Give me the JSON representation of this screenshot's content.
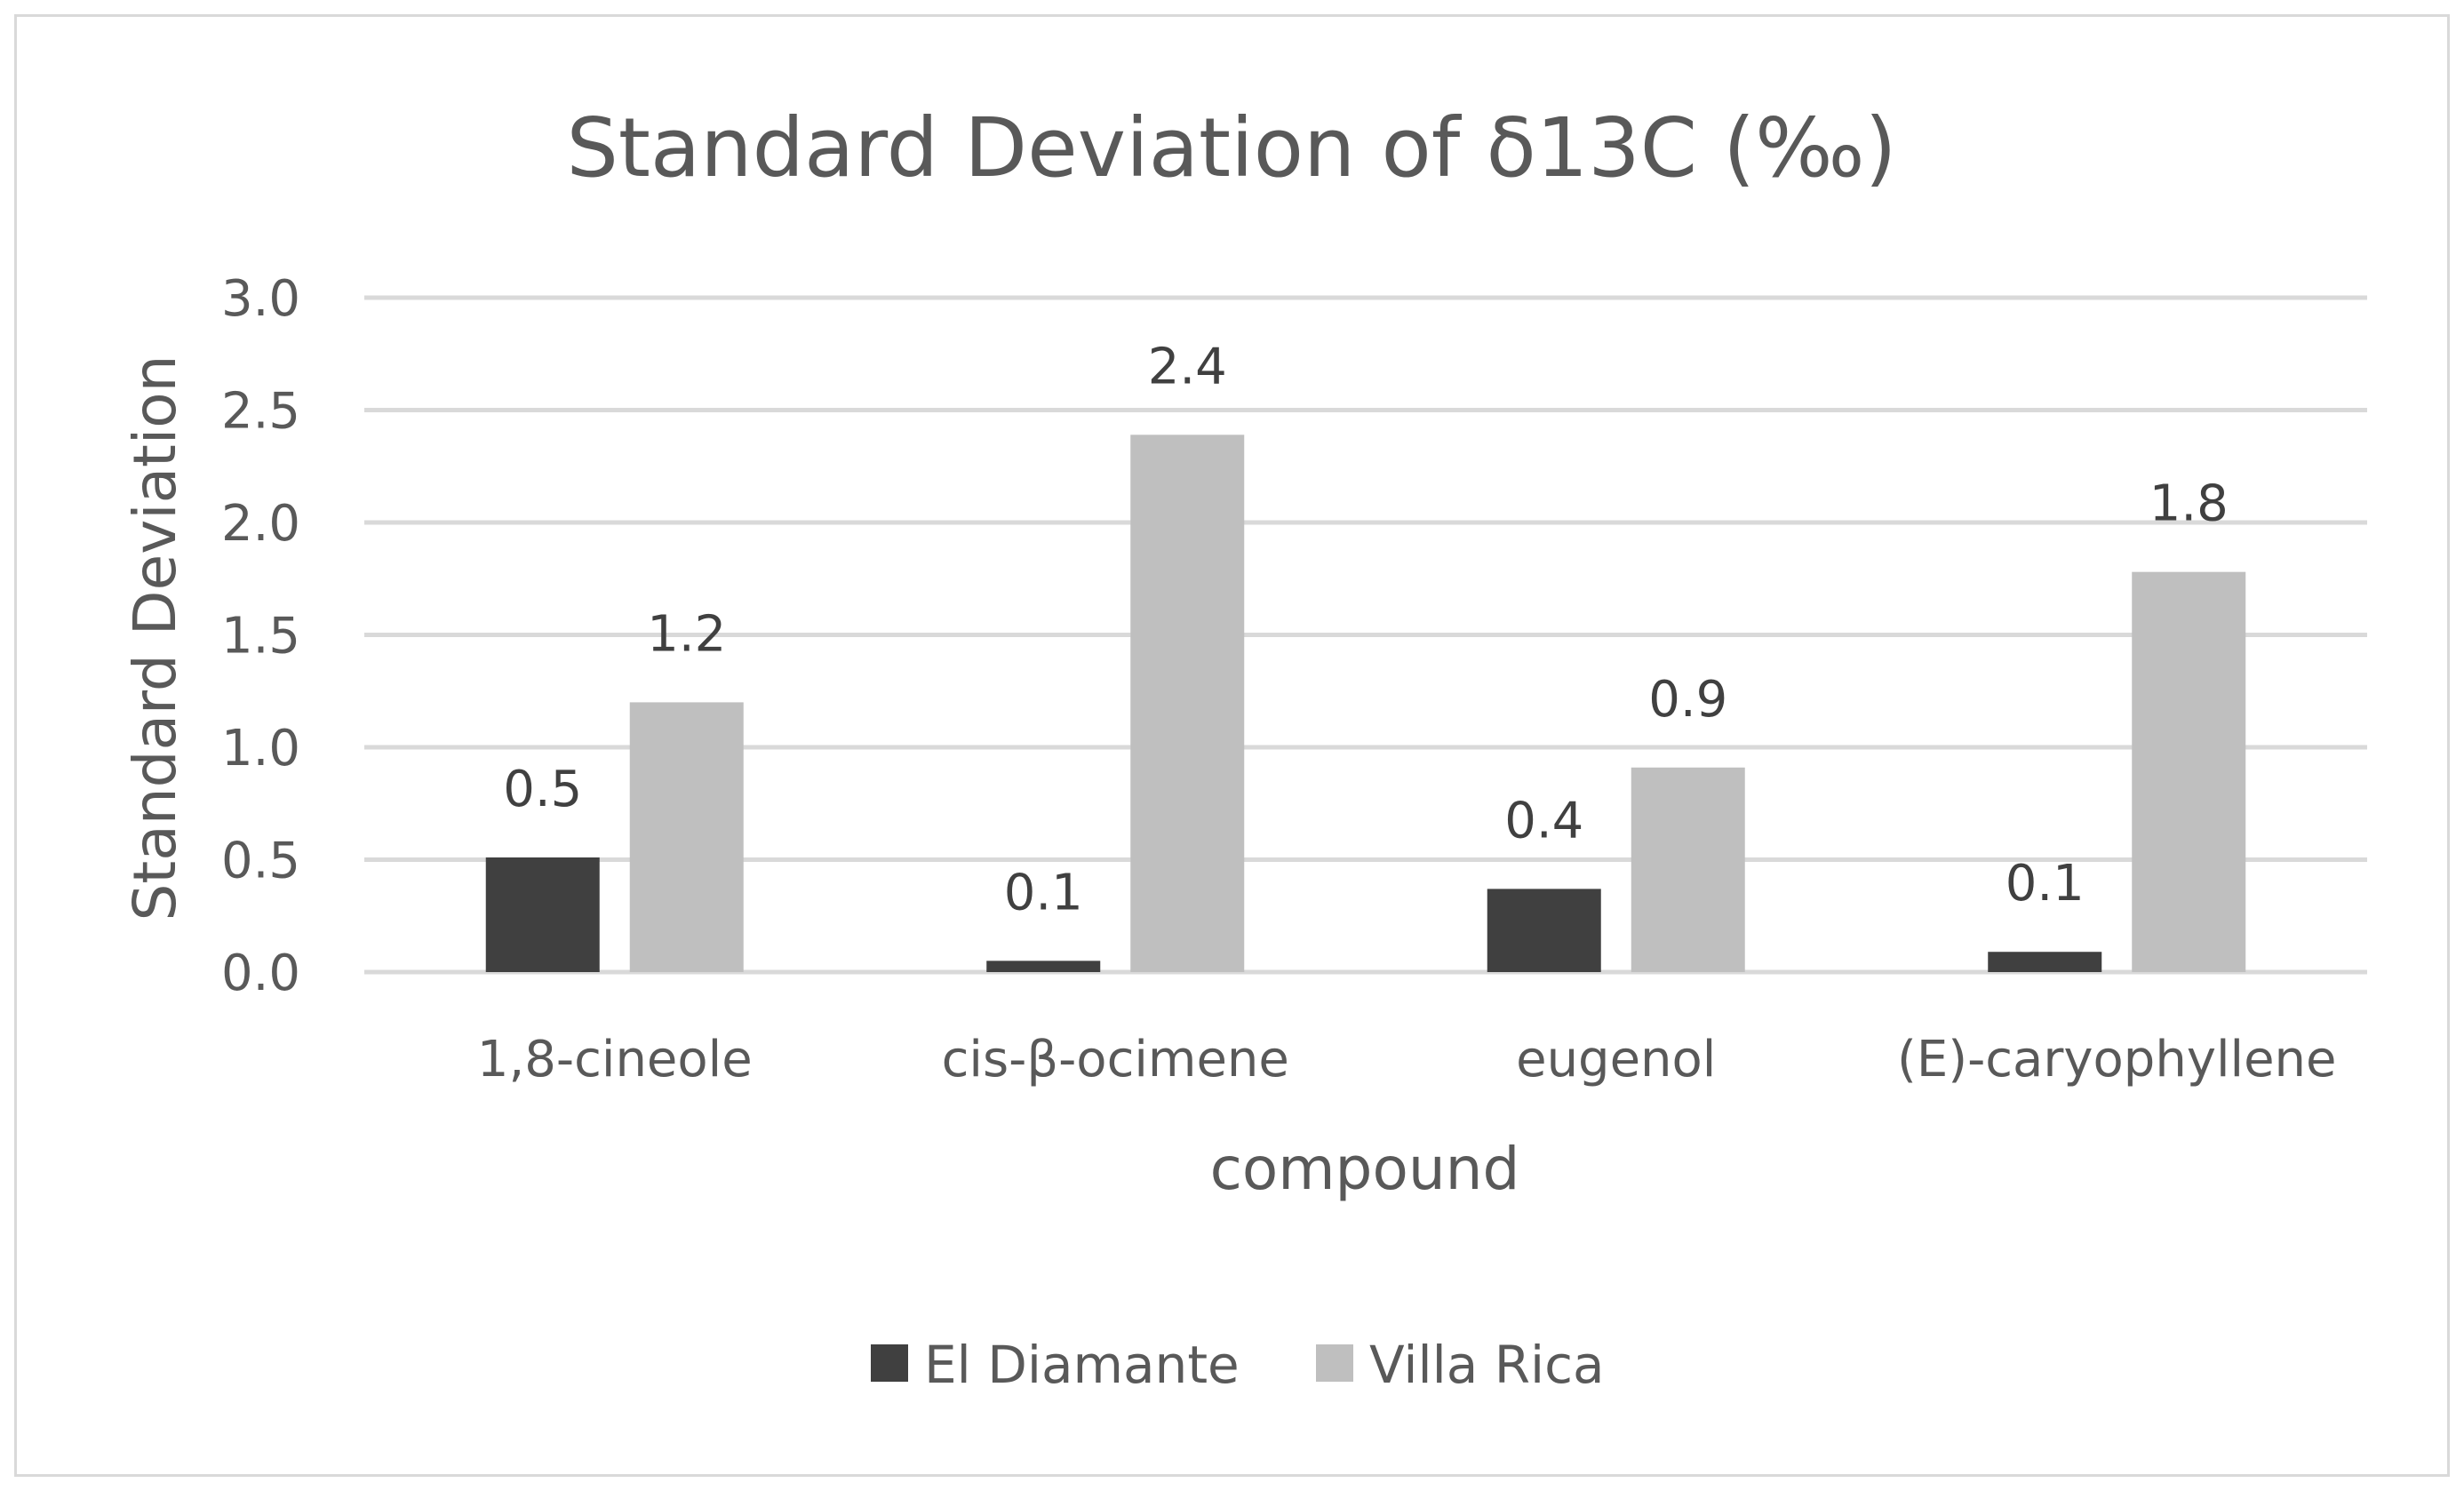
{
  "chart_data": {
    "type": "bar",
    "title": "Standard Deviation of δ13C (‰)",
    "xlabel": "compound",
    "ylabel": "Standard Deviation",
    "categories": [
      "1,8-cineole",
      "cis-β-ocimene",
      "eugenol",
      "(E)-caryophyllene"
    ],
    "series": [
      {
        "name": "El Diamante",
        "color": "#404040",
        "values": [
          0.51,
          0.05,
          0.37,
          0.09
        ],
        "labels": [
          "0.5",
          "0.1",
          "0.4",
          "0.1"
        ]
      },
      {
        "name": "Villa Rica",
        "color": "#bfbfbf",
        "values": [
          1.2,
          2.39,
          0.91,
          1.78
        ],
        "labels": [
          "1.2",
          "2.4",
          "0.9",
          "1.8"
        ]
      }
    ],
    "ylim": [
      0,
      3.0
    ],
    "yticks": [
      "0.0",
      "0.5",
      "1.0",
      "1.5",
      "2.0",
      "2.5",
      "3.0"
    ],
    "grid": true,
    "legend_position": "bottom"
  }
}
